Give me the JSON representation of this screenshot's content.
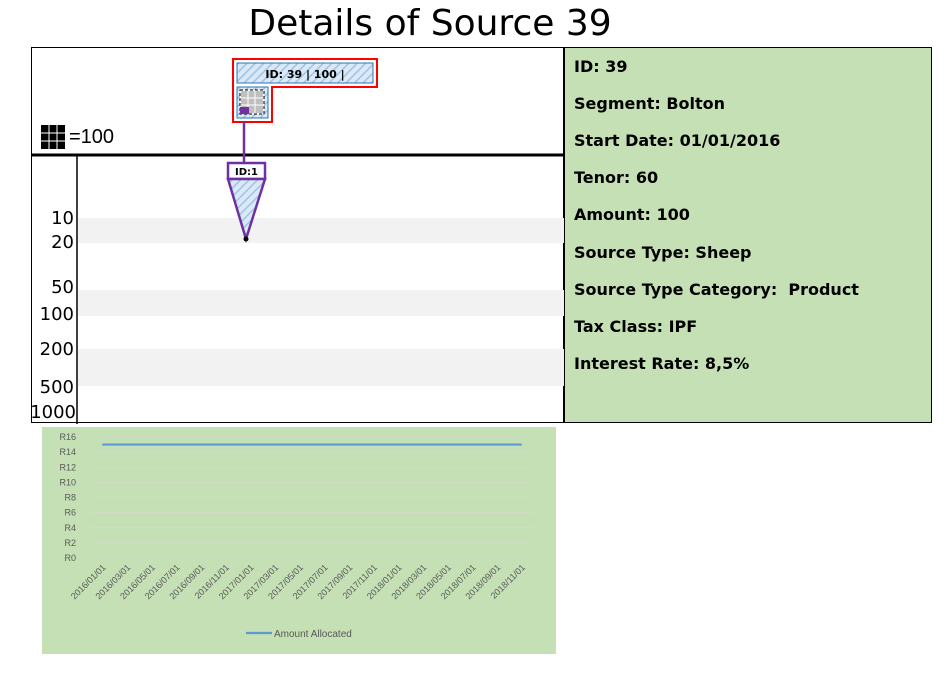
{
  "page": {
    "title": "Details of Source 39"
  },
  "diagram": {
    "legend_label": "=100",
    "source_box_label": "ID: 39 | 100 |",
    "node_label": "ID:1",
    "scale_labels": [
      "10",
      "20",
      "50",
      "100",
      "200",
      "500",
      "1000"
    ]
  },
  "info": {
    "rows": [
      "ID: 39",
      "Segment: Bolton",
      "Start Date: 01/01/2016",
      "Tenor: 60",
      "Amount: 100",
      "Source Type: Sheep",
      "Source Type Category:  Product",
      "Tax Class: IPF",
      "Interest Rate: 8,5%"
    ]
  },
  "colors": {
    "source_border": "#ff0000",
    "node_border": "#7030a0",
    "hatch": "#9dc3e6",
    "panel_bg": "#c5e0b4",
    "series_line": "#5b9bd5"
  },
  "chart_data": {
    "type": "line",
    "categories": [
      "2016/01/01",
      "2016/03/01",
      "2016/05/01",
      "2016/07/01",
      "2016/09/01",
      "2016/11/01",
      "2017/01/01",
      "2017/03/01",
      "2017/05/01",
      "2017/07/01",
      "2017/09/01",
      "2017/11/01",
      "2018/01/01",
      "2018/03/01",
      "2018/05/01",
      "2018/07/01",
      "2018/09/01",
      "2018/11/01"
    ],
    "y_tick_labels": [
      "R0",
      "R2",
      "R4",
      "R6",
      "R8",
      "R10",
      "R12",
      "R14",
      "R16"
    ],
    "ylim": [
      0,
      16
    ],
    "series": [
      {
        "name": "Amount Allocated",
        "values": [
          15,
          15,
          15,
          15,
          15,
          15,
          15,
          15,
          15,
          15,
          15,
          15,
          15,
          15,
          15,
          15,
          15,
          15
        ]
      }
    ],
    "legend_position": "bottom",
    "grid": true
  }
}
